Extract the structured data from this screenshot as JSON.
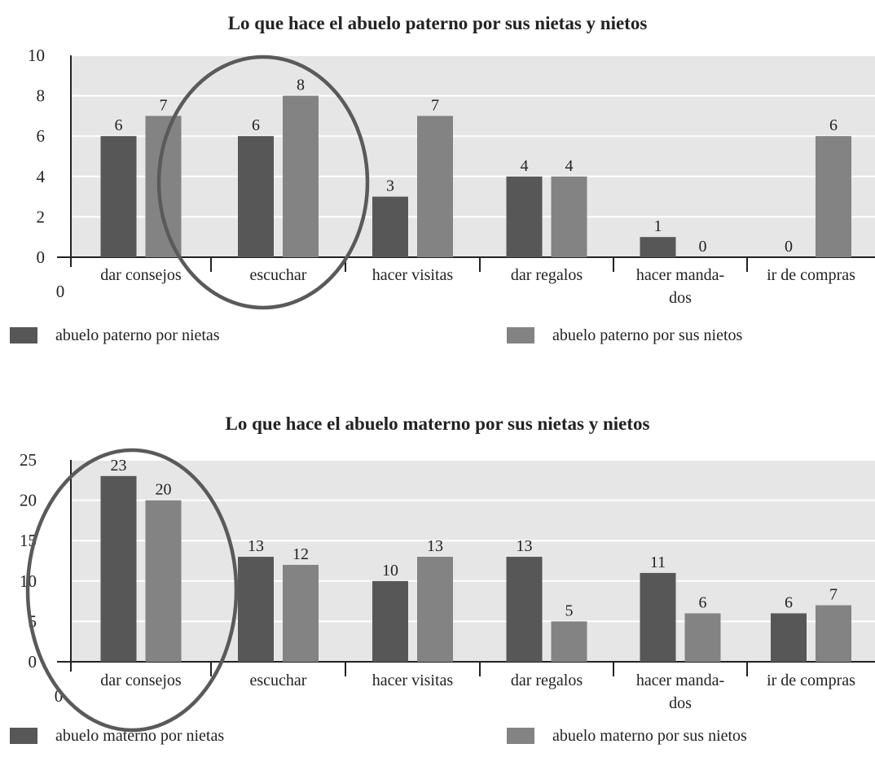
{
  "colors": {
    "dark": "#575757",
    "light": "#838383",
    "plot_bg": "#e6e6e6",
    "grid": "#ffffff",
    "circle": "#5a5a5a"
  },
  "chart_data": [
    {
      "type": "bar",
      "title": "Lo que hace el abuelo paterno por sus nietas y nietos",
      "categories": [
        [
          "dar consejos"
        ],
        [
          "escuchar"
        ],
        [
          "hacer visitas"
        ],
        [
          "dar regalos"
        ],
        [
          "hacer manda-",
          "dos"
        ],
        [
          "ir de compras"
        ]
      ],
      "series": [
        {
          "name": "abuelo paterno por  nietas",
          "values": [
            6,
            6,
            3,
            4,
            1,
            0
          ],
          "color": "dark"
        },
        {
          "name": "abuelo paterno por sus nietos",
          "values": [
            7,
            8,
            7,
            4,
            0,
            6
          ],
          "color": "light"
        }
      ],
      "ylim": [
        0,
        10
      ],
      "yticks": [
        "0",
        "2",
        "4",
        "6",
        "8",
        "10"
      ],
      "origin_label": "0",
      "grid": true,
      "legend": "bottom",
      "highlight_category": "escuchar"
    },
    {
      "type": "bar",
      "title": "Lo que hace el abuelo materno por sus nietas y nietos",
      "categories": [
        [
          "dar consejos"
        ],
        [
          "escuchar"
        ],
        [
          "hacer visitas"
        ],
        [
          "dar regalos"
        ],
        [
          "hacer manda-",
          "dos"
        ],
        [
          "ir de compras"
        ]
      ],
      "series": [
        {
          "name": "abuelo materno por  nietas",
          "values": [
            23,
            13,
            10,
            13,
            11,
            6
          ],
          "color": "dark"
        },
        {
          "name": "abuelo materno por sus nietos",
          "values": [
            20,
            12,
            13,
            5,
            6,
            7
          ],
          "color": "light"
        }
      ],
      "ylim": [
        0,
        25
      ],
      "yticks": [
        "0",
        "5",
        "10",
        "15",
        "20",
        "25"
      ],
      "origin_label": "0",
      "grid": true,
      "legend": "bottom",
      "highlight_category": "dar consejos"
    }
  ]
}
